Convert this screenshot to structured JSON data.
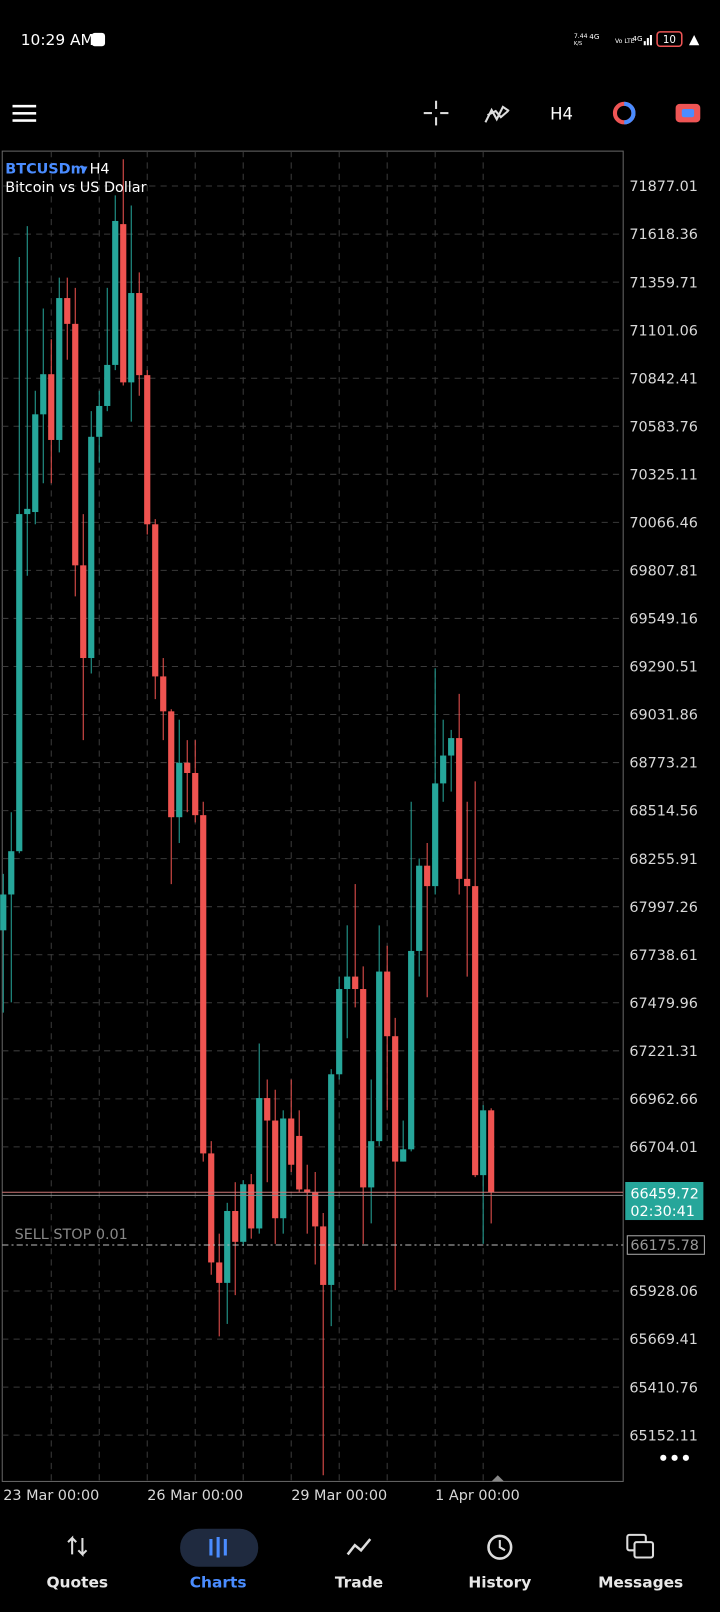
{
  "status": {
    "time": "10:29 AM",
    "speed": "7.44",
    "speed_unit": "K/S",
    "net1": "4G",
    "volte": "Vo LTE",
    "net2": "4G",
    "battery": "10"
  },
  "toolbar": {
    "timeframe": "H4"
  },
  "nav": [
    "Quotes",
    "Charts",
    "Trade",
    "History",
    "Messages"
  ],
  "chart_data": {
    "type": "candlestick",
    "symbol": "BTCUSDm",
    "timeframe": "H4",
    "title": "Bitcoin vs US Dollar",
    "up_color": "#26a69a",
    "down_color": "#ef5350",
    "grid": true,
    "categories": [
      "23 Mar 00:00",
      null,
      null,
      null,
      null,
      null,
      null,
      null,
      null,
      null,
      null,
      null,
      null,
      null,
      null,
      null,
      null,
      null,
      "26 Mar 00:00",
      null,
      null,
      null,
      null,
      null,
      null,
      null,
      null,
      null,
      null,
      null,
      null,
      null,
      null,
      null,
      null,
      null,
      "29 Mar 00:00",
      null,
      null,
      null,
      null,
      null,
      null,
      null,
      null,
      null,
      null,
      null,
      null,
      null,
      null,
      null,
      null,
      null,
      "1 Apr 00:00",
      null,
      null,
      null,
      null,
      null,
      null,
      null
    ],
    "open": [
      67870,
      68063,
      68296,
      70111,
      70122,
      70648,
      70864,
      70510,
      71274,
      71135,
      69835,
      69336,
      70527,
      70693,
      70914,
      71672,
      70820,
      71301,
      70859,
      70056,
      69237,
      69049,
      68479,
      68772,
      68717,
      68490,
      66669,
      66082,
      65972,
      66359,
      66193,
      66503,
      66265,
      66967,
      66846,
      66320,
      66857,
      66763,
      66475,
      66458,
      66276,
      65961,
      67095,
      67554,
      67621,
      67554,
      66486,
      66735,
      67648,
      67300,
      66625,
      66691,
      67759,
      68218,
      68108,
      68661,
      68811,
      68905,
      68147,
      68108,
      66552,
      66901
    ],
    "high": [
      68174,
      68506,
      71495,
      71661,
      70775,
      71218,
      71052,
      71384,
      71384,
      71329,
      70111,
      70665,
      70775,
      71329,
      71827,
      72021,
      71772,
      71412,
      70886,
      70084,
      69336,
      69060,
      69004,
      68894,
      68894,
      68562,
      66735,
      66237,
      66403,
      66514,
      66525,
      66558,
      67261,
      67067,
      67012,
      66901,
      67067,
      66901,
      66608,
      66569,
      66348,
      67123,
      67621,
      67897,
      68119,
      67676,
      67067,
      67897,
      67787,
      67399,
      66846,
      68562,
      68257,
      68340,
      69281,
      69004,
      68949,
      69143,
      68562,
      68672,
      66929,
      66912
    ],
    "low": [
      67427,
      67482,
      68285,
      69779,
      70056,
      70277,
      70277,
      70443,
      70942,
      69668,
      68894,
      69253,
      70388,
      70665,
      70886,
      70803,
      70609,
      70748,
      70001,
      69115,
      68894,
      68119,
      68340,
      68506,
      68451,
      66625,
      66016,
      65684,
      65751,
      65906,
      66171,
      66210,
      66237,
      66514,
      66182,
      66237,
      66569,
      66458,
      66237,
      66071,
      64936,
      65739,
      67067,
      67289,
      67455,
      66182,
      66292,
      66708,
      66901,
      65933,
      66625,
      66680,
      67621,
      67510,
      68063,
      68562,
      68617,
      68063,
      67621,
      66541,
      66182,
      66292
    ],
    "close": [
      68063,
      68296,
      70111,
      70139,
      70648,
      70864,
      70510,
      71274,
      71135,
      69835,
      69336,
      70527,
      70693,
      70914,
      71689,
      70820,
      71301,
      70859,
      70056,
      69237,
      69049,
      68479,
      68772,
      68717,
      68490,
      66669,
      66082,
      65972,
      66359,
      66193,
      66503,
      66265,
      66967,
      66846,
      66320,
      66857,
      66608,
      66475,
      66458,
      66276,
      65961,
      67095,
      67554,
      67621,
      67554,
      66486,
      66735,
      67648,
      67300,
      66625,
      66691,
      67759,
      68218,
      68108,
      68661,
      68811,
      68905,
      68147,
      68108,
      66552,
      66901,
      66459.72
    ],
    "ylim": [
      64903,
      72065
    ],
    "yticks": [
      71877.01,
      71618.36,
      71359.71,
      71101.06,
      70842.41,
      70583.76,
      70325.11,
      70066.46,
      69807.81,
      69549.16,
      69290.51,
      69031.86,
      68773.21,
      68514.56,
      68255.91,
      67997.26,
      67738.61,
      67479.96,
      67221.31,
      66962.66,
      66704.01,
      65928.06,
      65669.41,
      65410.76,
      65152.11
    ],
    "bid": {
      "price": 66459.72,
      "timer": "02:30:41"
    },
    "order": {
      "label": "SELL STOP 0.01",
      "price": 66175.78
    }
  }
}
